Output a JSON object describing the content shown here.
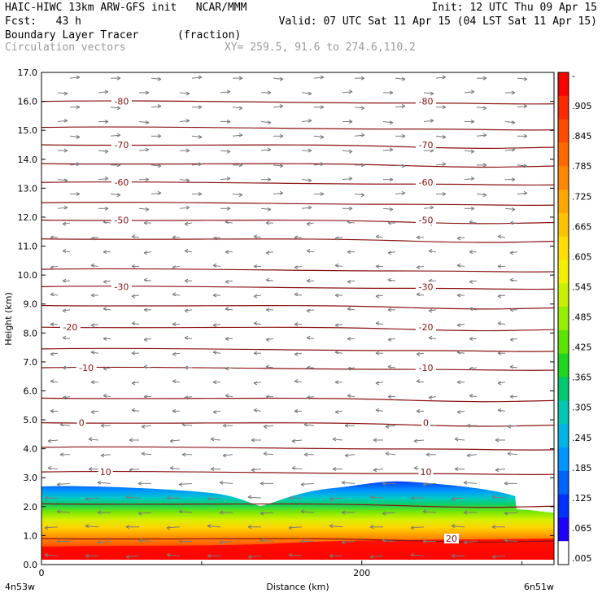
{
  "header": {
    "line1_left": "HAIC-HIWC 13km ARW-GFS init   NCAR/MMM",
    "line1_right": "Init: 12 UTC Thu 09 Apr 15",
    "line2_left": "Fcst:   43 h",
    "line2_right": "Valid: 07 UTC Sat 11 Apr 15 (04 LST Sat 11 Apr 15)",
    "field_name": "Boundary Layer Tracer",
    "field_units": "(fraction)",
    "vector_label": "Circulation vectors",
    "xy_label": "XY= 259.5, 91.6 to 274.6,110.2"
  },
  "chart_data": {
    "type": "heatmap",
    "xlabel": "Distance (km)",
    "ylabel": "Height (km)",
    "xlim": [
      0,
      320
    ],
    "ylim": [
      0,
      17
    ],
    "x_ticks": [
      "0",
      "200"
    ],
    "y_ticks": [
      "0.0",
      "1.0",
      "2.0",
      "3.0",
      "4.0",
      "5.0",
      "6.0",
      "7.0",
      "8.0",
      "9.0",
      "10.0",
      "11.0",
      "12.0",
      "13.0",
      "14.0",
      "15.0",
      "16.0",
      "17.0"
    ],
    "x_endpoints": [
      "4n53w",
      "6n51w"
    ],
    "colorbar_labels": [
      "-",
      ".905",
      ".845",
      ".785",
      ".725",
      ".665",
      ".605",
      ".545",
      ".485",
      ".425",
      ".365",
      ".305",
      ".245",
      ".185",
      ".125",
      ".065",
      ".005"
    ],
    "colorbar_colors": [
      "#ff0000",
      "#ff2a00",
      "#ff4c00",
      "#ff6a00",
      "#ff8800",
      "#ffa600",
      "#ffc200",
      "#ffde00",
      "#f2f000",
      "#c8f000",
      "#96ee00",
      "#5ae400",
      "#1ed61e",
      "#00c870",
      "#00c8b0",
      "#00b4e6",
      "#0096ff",
      "#0064ff",
      "#0032ff",
      "#1e00ff",
      "#ffffff"
    ],
    "temperature_contours": [
      {
        "label": "-80",
        "y": 16.0
      },
      {
        "label": "-70",
        "y": 14.5
      },
      {
        "label": "-60",
        "y": 13.2
      },
      {
        "label": "-50",
        "y": 11.9
      },
      {
        "label": "-30",
        "y": 9.6
      },
      {
        "label": "-20",
        "y": 8.2
      },
      {
        "label": "-10",
        "y": 6.8
      },
      {
        "label": "0",
        "y": 4.9
      },
      {
        "label": "10",
        "y": 3.2
      },
      {
        "label": "20",
        "y": 0.9
      }
    ],
    "contour_labels_left": [
      {
        "label": "-80",
        "y": 16.0,
        "x": 50
      },
      {
        "label": "-70",
        "y": 14.5,
        "x": 50
      },
      {
        "label": "-60",
        "y": 13.2,
        "x": 50
      },
      {
        "label": "-50",
        "y": 11.9,
        "x": 50
      },
      {
        "label": "-30",
        "y": 9.6,
        "x": 50
      },
      {
        "label": "-20",
        "y": 8.2,
        "x": 18
      },
      {
        "label": "-10",
        "y": 6.8,
        "x": 28
      },
      {
        "label": "0",
        "y": 4.9,
        "x": 25
      },
      {
        "label": "10",
        "y": 3.2,
        "x": 40
      }
    ],
    "contour_labels_right": [
      {
        "label": "-80",
        "y": 16.0,
        "x": 240
      },
      {
        "label": "-70",
        "y": 14.5,
        "x": 240
      },
      {
        "label": "-60",
        "y": 13.2,
        "x": 240
      },
      {
        "label": "-50",
        "y": 11.9,
        "x": 240
      },
      {
        "label": "-30",
        "y": 9.6,
        "x": 240
      },
      {
        "label": "-20",
        "y": 8.2,
        "x": 240
      },
      {
        "label": "-10",
        "y": 6.8,
        "x": 240
      },
      {
        "label": "0",
        "y": 4.9,
        "x": 240
      },
      {
        "label": "10",
        "y": 3.2,
        "x": 240
      },
      {
        "label": "20",
        "y": 0.9,
        "x": 256
      }
    ],
    "extra_isotherms_y": [
      15.1,
      13.85,
      12.5,
      11.25,
      10.2,
      8.95,
      7.45,
      5.75,
      4.05,
      2.1
    ]
  }
}
